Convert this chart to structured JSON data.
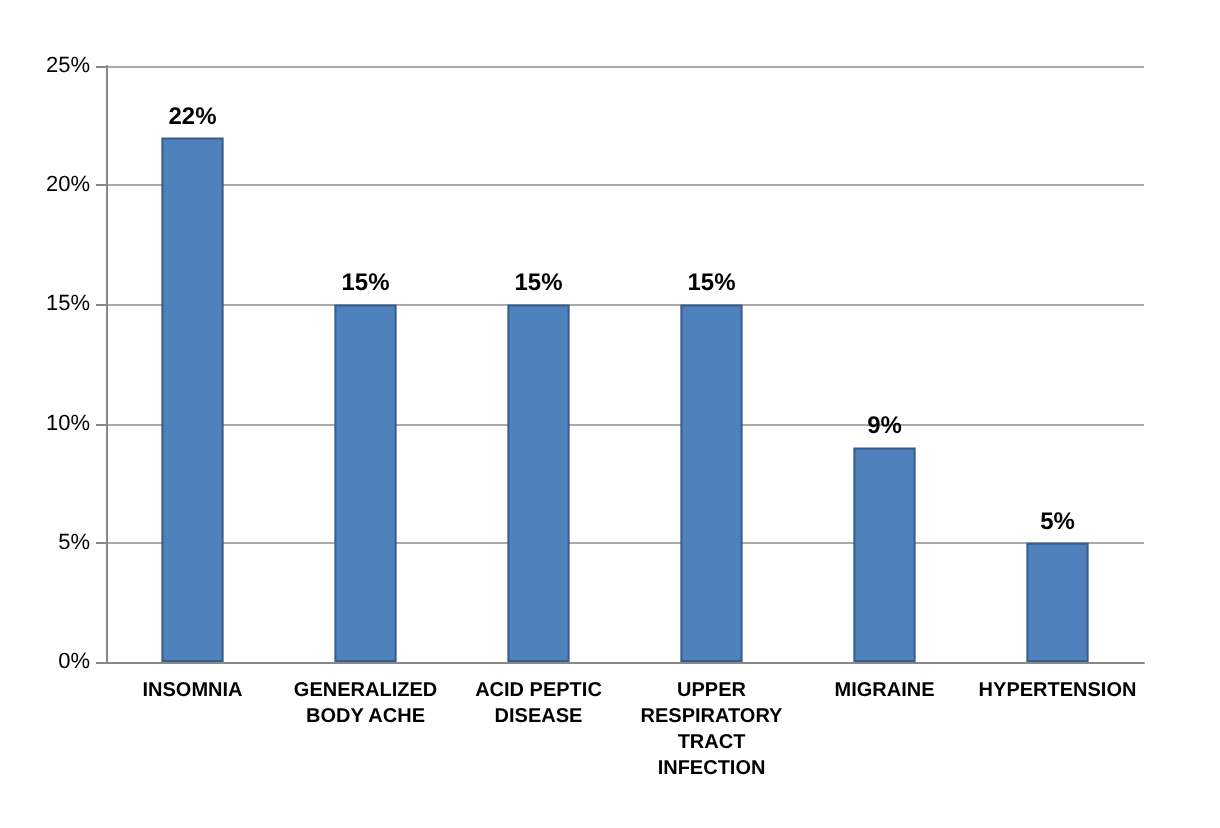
{
  "chart_data": {
    "type": "bar",
    "categories": [
      "INSOMNIA",
      "GENERALIZED BODY ACHE",
      "ACID PEPTIC DISEASE",
      "UPPER RESPIRATORY TRACT INFECTION",
      "MIGRAINE",
      "HYPERTENSION"
    ],
    "values": [
      22,
      15,
      15,
      15,
      9,
      5
    ],
    "value_labels": [
      "22%",
      "15%",
      "15%",
      "15%",
      "9%",
      "5%"
    ],
    "color": "#4f81bd",
    "ylim": [
      0,
      25
    ],
    "yticks": [
      {
        "value": 0,
        "label": "0%"
      },
      {
        "value": 5,
        "label": "5%"
      },
      {
        "value": 10,
        "label": "10%"
      },
      {
        "value": 15,
        "label": "15%"
      },
      {
        "value": 20,
        "label": "20%"
      },
      {
        "value": 25,
        "label": "25%"
      }
    ],
    "grid": "y"
  }
}
